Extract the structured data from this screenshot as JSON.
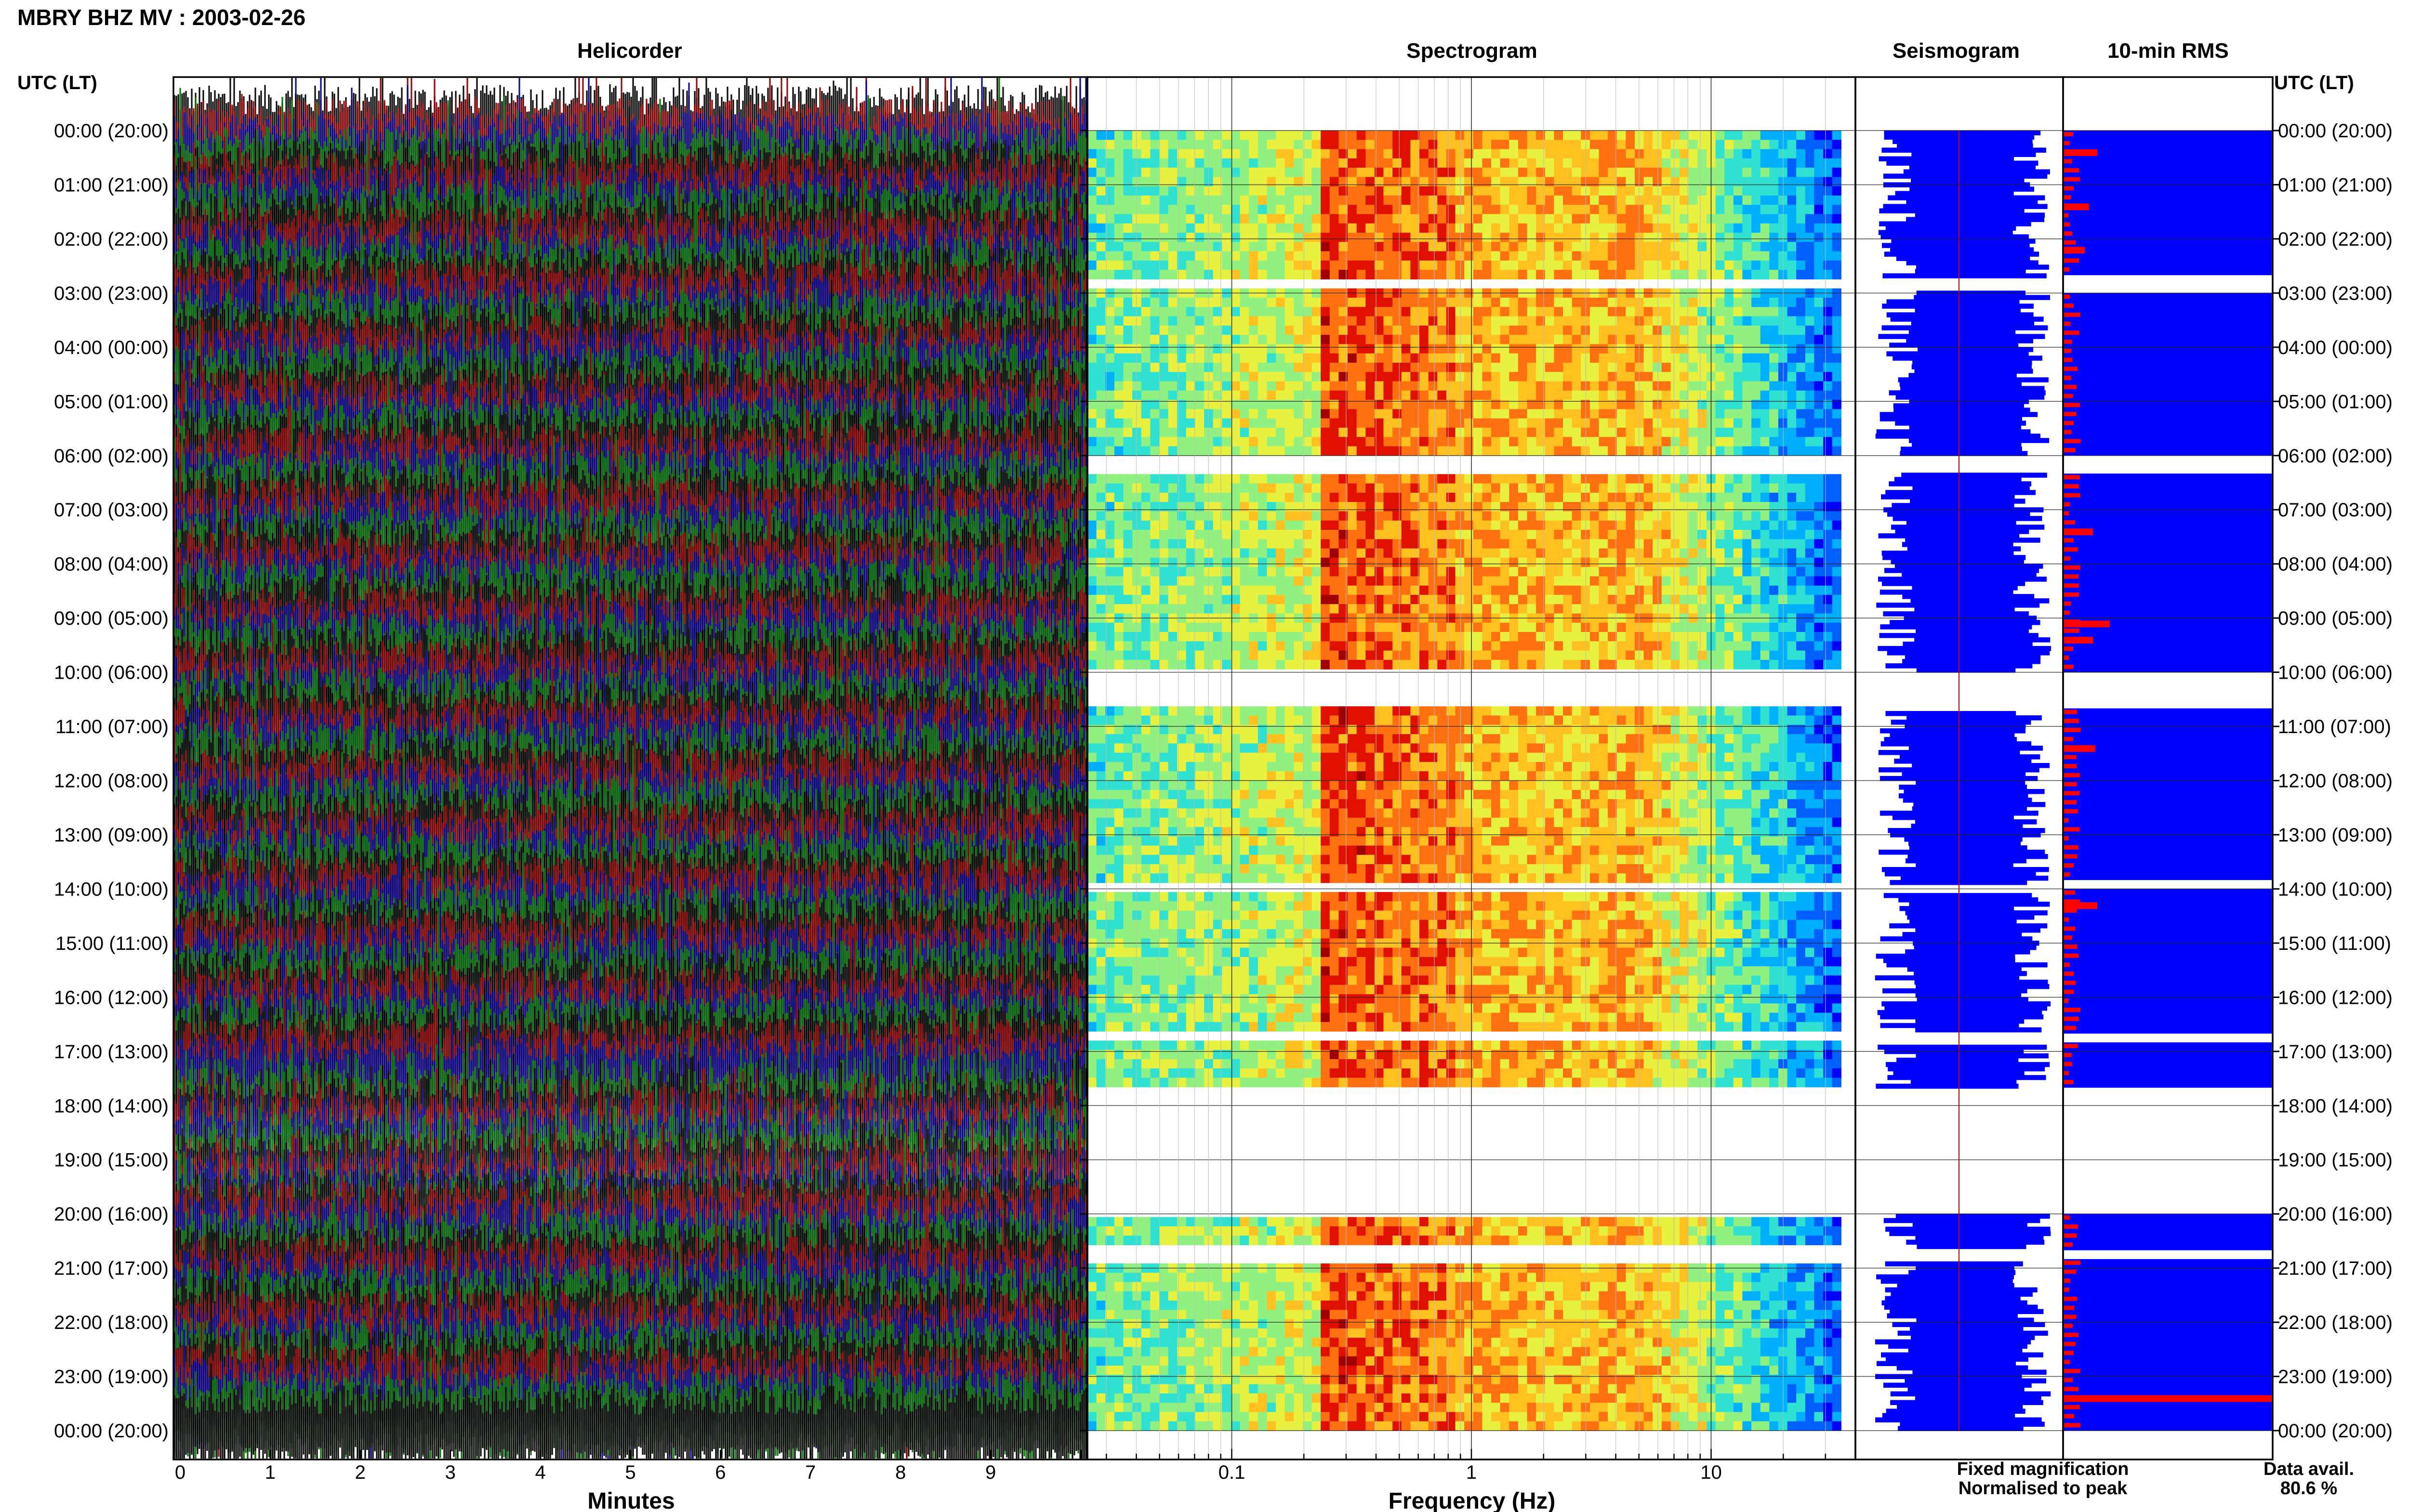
{
  "title": "MBRY BHZ MV : 2003-02-26",
  "panels": {
    "helicorder": "Helicorder",
    "spectrogram": "Spectrogram",
    "seismogram": "Seismogram",
    "rms": "10-min RMS"
  },
  "time_axis_label": "UTC (LT)",
  "time_labels": [
    "00:00 (20:00)",
    "01:00 (21:00)",
    "02:00 (22:00)",
    "03:00 (23:00)",
    "04:00 (00:00)",
    "05:00 (01:00)",
    "06:00 (02:00)",
    "07:00 (03:00)",
    "08:00 (04:00)",
    "09:00 (05:00)",
    "10:00 (06:00)",
    "11:00 (07:00)",
    "12:00 (08:00)",
    "13:00 (09:00)",
    "14:00 (10:00)",
    "15:00 (11:00)",
    "16:00 (12:00)",
    "17:00 (13:00)",
    "18:00 (14:00)",
    "19:00 (15:00)",
    "20:00 (16:00)",
    "21:00 (17:00)",
    "22:00 (18:00)",
    "23:00 (19:00)",
    "00:00 (20:00)"
  ],
  "legend": {
    "fixed": "Fixed magnification",
    "normalised": "Normalised to peak",
    "fixed_color": "#1010e0",
    "normalised_color": "#e01010"
  },
  "availability": {
    "label": "Data avail.",
    "value": "80.6 %"
  },
  "colors": {
    "helicorder_traces": [
      "#000000",
      "#8b0000",
      "#00008b",
      "#007000"
    ],
    "fixed": "#0000ff",
    "normalised": "#ff0000"
  },
  "chart_data": {
    "type": "heatmap",
    "date": "2003-02-26",
    "station": "MBRY BHZ MV",
    "time_range_utc_hours": [
      0,
      24
    ],
    "helicorder": {
      "xlabel": "Minutes",
      "x_ticks": [
        "0",
        "1",
        "2",
        "3",
        "4",
        "5",
        "6",
        "7",
        "8",
        "9"
      ],
      "xlim": [
        0,
        10
      ]
    },
    "spectrogram": {
      "xlabel": "Frequency (Hz)",
      "x_ticks": [
        "0.1",
        "1",
        "10"
      ],
      "xlim": [
        0.025,
        40
      ],
      "x_scale": "log",
      "y_ticks": "UTC hours"
    },
    "data_gaps_utc_hours": [
      [
        2.7,
        3.0
      ],
      [
        6.0,
        6.35
      ],
      [
        10.0,
        10.7
      ],
      [
        13.9,
        14.05
      ],
      [
        16.65,
        16.85
      ],
      [
        17.7,
        20.0
      ],
      [
        20.65,
        20.85
      ]
    ],
    "rms_normalised_peaks": [
      {
        "hour": 0.4,
        "value": 0.16
      },
      {
        "hour": 1.4,
        "value": 0.12
      },
      {
        "hour": 2.2,
        "value": 0.1
      },
      {
        "hour": 7.4,
        "value": 0.14
      },
      {
        "hour": 9.1,
        "value": 0.22
      },
      {
        "hour": 9.4,
        "value": 0.14
      },
      {
        "hour": 11.4,
        "value": 0.15
      },
      {
        "hour": 14.3,
        "value": 0.16
      },
      {
        "hour": 23.4,
        "value": 1.0
      }
    ],
    "data_availability_percent": 80.6
  }
}
